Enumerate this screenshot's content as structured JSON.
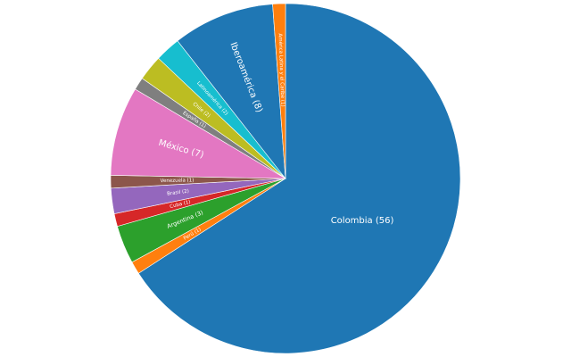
{
  "chart_data": {
    "type": "pie",
    "direction": "clockwise",
    "start": "top",
    "slices": [
      {
        "label": "Colombia (56)",
        "value": 56,
        "color": "#1f77b4"
      },
      {
        "label": "Perú (1)",
        "value": 1,
        "color": "#ff7f0e"
      },
      {
        "label": "Argentina (3)",
        "value": 3,
        "color": "#2ca02c"
      },
      {
        "label": "Cuba (1)",
        "value": 1,
        "color": "#d62728"
      },
      {
        "label": "Brasil (2)",
        "value": 2,
        "color": "#9467bd"
      },
      {
        "label": "Venezuela (1)",
        "value": 1,
        "color": "#8c564b"
      },
      {
        "label": "México (7)",
        "value": 7,
        "color": "#e377c2"
      },
      {
        "label": "España (1)",
        "value": 1,
        "color": "#7f7f7f"
      },
      {
        "label": "Chile (2)",
        "value": 2,
        "color": "#bcbd22"
      },
      {
        "label": "Latinoamérica (2)",
        "value": 2,
        "color": "#17becf"
      },
      {
        "label": "Iberoamérica (8)",
        "value": 8,
        "color": "#1f77b4"
      },
      {
        "label": "América Latina y el Caribe (1)",
        "value": 1,
        "color": "#ff7f0e"
      }
    ]
  }
}
